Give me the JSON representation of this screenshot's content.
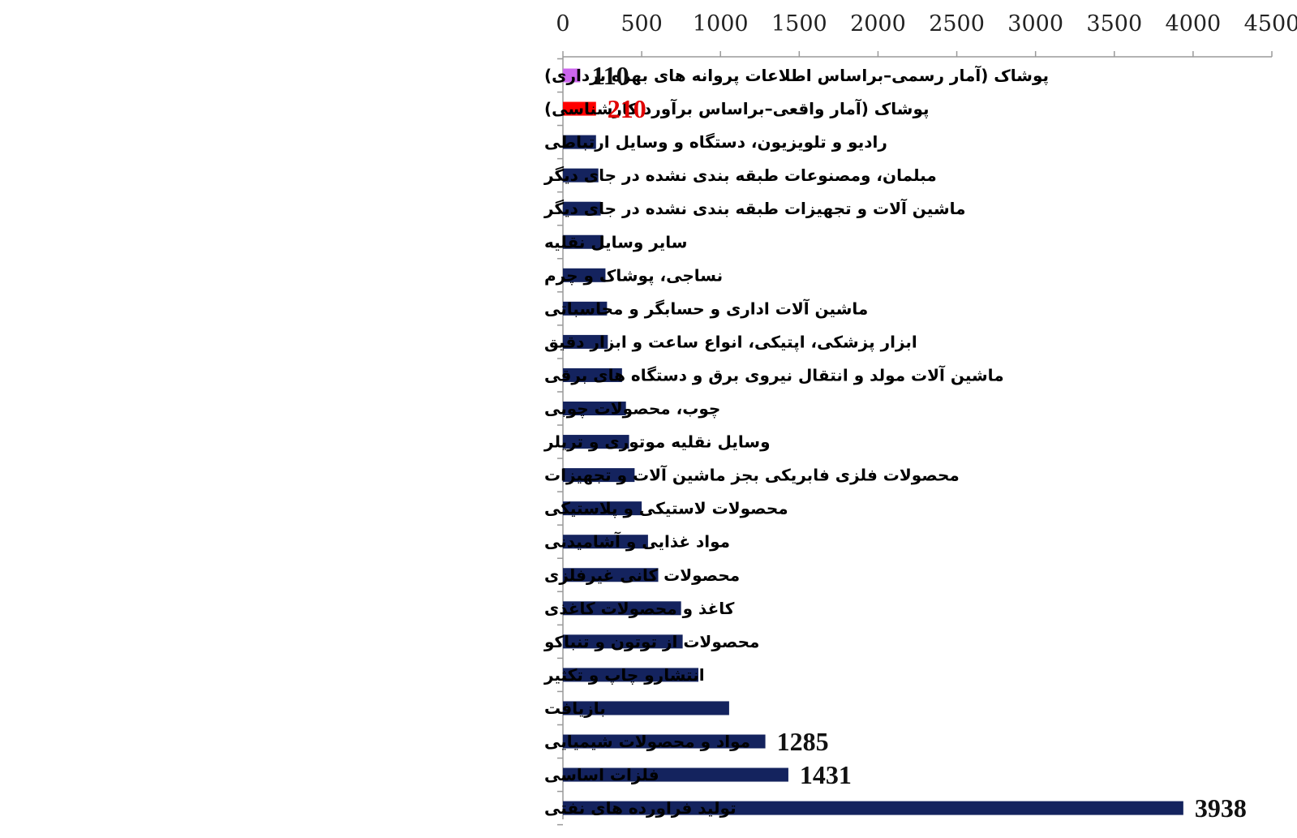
{
  "chart_data": {
    "type": "bar",
    "orientation": "horizontal",
    "axis_position": "top",
    "xlim": [
      0,
      4500
    ],
    "x_ticks": [
      "0",
      "500",
      "1000",
      "1500",
      "2000",
      "2500",
      "3000",
      "3500",
      "4000",
      "4500"
    ],
    "grid": false,
    "legend": "none",
    "categories": [
      "پوشاک (آمار رسمی–براساس اطلاعات پروانه های بهره برداری)",
      "پوشاک (آمار واقعی–براساس برآورد کارشناسی)",
      "رادیو و تلویزیون، دستگاه و وسایل ارتباطی",
      "مبلمان، ومصنوعات طبقه بندی نشده در جای دیگر",
      "ماشین آلات و تجهیزات طبقه بندی نشده در جای دیگر",
      "سایر وسایل نقلیه",
      "نساجی، پوشاک و چرم",
      "ماشین آلات اداری و حسابگر و محاسباتی",
      "ابزار پزشکی، اپتیکی، انواع ساعت و ابزار دقیق",
      "ماشین آلات مولد و انتقال نیروی برق  و دستگاه های برقی",
      "چوب، محصولات چوبی",
      "وسایل نقلیه موتوری و تریلر",
      "محصولات فلزی فابریکی بجز ماشین آلات و تجهیزات",
      "محصولات لاستیکی و پلاستیکی",
      "مواد غذایی و آشامیدنی",
      "محصولات کانی غیرفلزی",
      "کاغذ و محصولات کاغذی",
      "محصولات از توتون و تنباکو",
      "انتشارو چاپ و تکثیر",
      "بازیافت",
      "مواد و محصولات شیمیایی",
      "فلزات اساسی",
      "تولید فراورده های نفتی"
    ],
    "values": [
      110,
      210,
      210,
      225,
      240,
      255,
      270,
      280,
      285,
      375,
      400,
      420,
      455,
      500,
      540,
      605,
      750,
      760,
      860,
      1055,
      1285,
      1431,
      3938
    ],
    "bar_colors": [
      "#cc66ee",
      "#ff0000",
      "#14235e",
      "#14235e",
      "#14235e",
      "#14235e",
      "#14235e",
      "#14235e",
      "#14235e",
      "#14235e",
      "#14235e",
      "#14235e",
      "#14235e",
      "#14235e",
      "#14235e",
      "#14235e",
      "#14235e",
      "#14235e",
      "#14235e",
      "#14235e",
      "#14235e",
      "#14235e",
      "#14235e"
    ],
    "data_labels": [
      "110",
      "210",
      "",
      "",
      "",
      "",
      "",
      "",
      "",
      "",
      "",
      "",
      "",
      "",
      "",
      "",
      "",
      "",
      "",
      "",
      "1285",
      "1431",
      "3938"
    ],
    "data_label_colors": [
      "#111111",
      "#e00000",
      "",
      "",
      "",
      "",
      "",
      "",
      "",
      "",
      "",
      "",
      "",
      "",
      "",
      "",
      "",
      "",
      "",
      "",
      "#111111",
      "#111111",
      "#111111"
    ],
    "axis_color": "#9a9a9a"
  }
}
